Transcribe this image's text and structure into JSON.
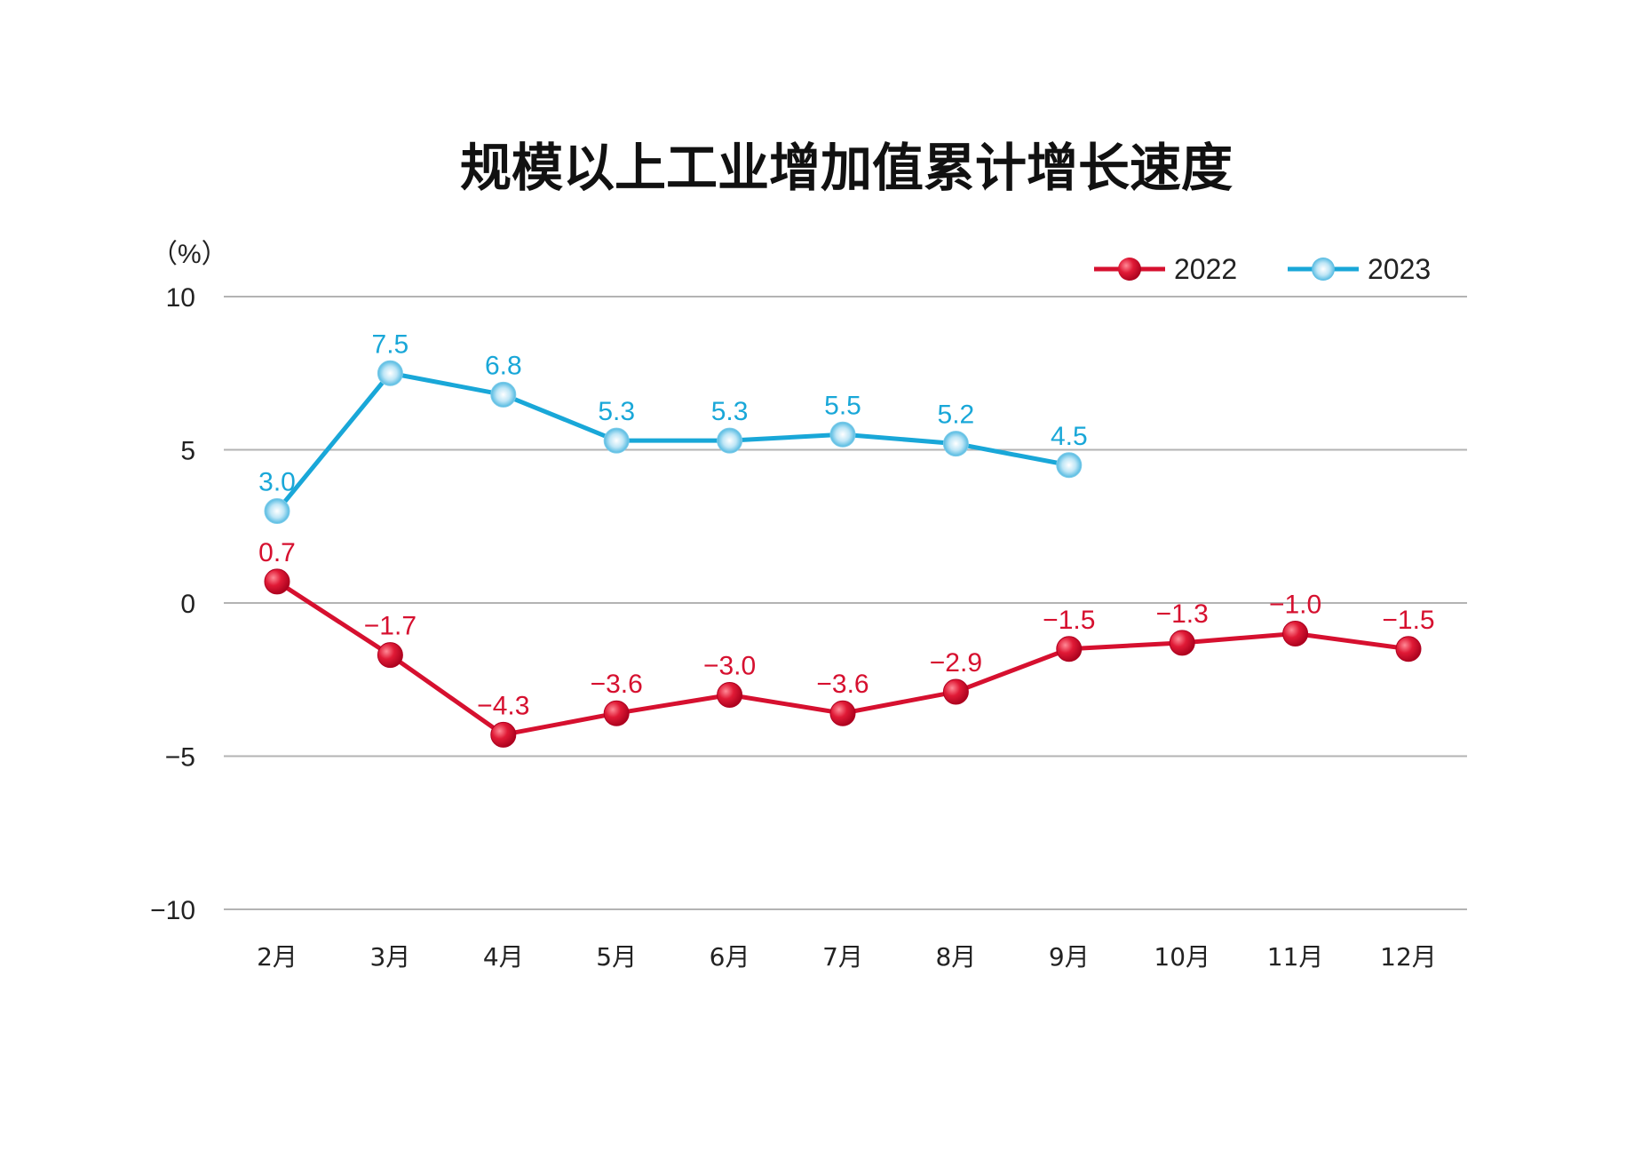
{
  "colors": {
    "series_2022": "#d6102f",
    "series_2023": "#19a7d8",
    "grid": "#b3b3b3",
    "text": "#222222"
  },
  "chart_data": {
    "type": "line",
    "title": "规模以上工业增加值累计增长速度",
    "ylabel": "（%）",
    "xlabel": "",
    "ylim": [
      -10,
      10
    ],
    "yticks": [
      10,
      5,
      0,
      -5,
      -10
    ],
    "ytick_labels": [
      "10",
      "5",
      "0",
      "−5",
      "−10"
    ],
    "grid": true,
    "legend_position": "top-right",
    "categories": [
      "2月",
      "3月",
      "4月",
      "5月",
      "6月",
      "7月",
      "8月",
      "9月",
      "10月",
      "11月",
      "12月"
    ],
    "series": [
      {
        "name": "2022",
        "color": "#d6102f",
        "values": [
          0.7,
          -1.7,
          -4.3,
          -3.6,
          -3.0,
          -3.6,
          -2.9,
          -1.5,
          -1.3,
          -1.0,
          -1.5
        ],
        "labels": [
          "0.7",
          "−1.7",
          "−4.3",
          "−3.6",
          "−3.0",
          "−3.6",
          "−2.9",
          "−1.5",
          "−1.3",
          "−1.0",
          "−1.5"
        ]
      },
      {
        "name": "2023",
        "color": "#19a7d8",
        "values": [
          3.0,
          7.5,
          6.8,
          5.3,
          5.3,
          5.5,
          5.2,
          4.5,
          null,
          null,
          null
        ],
        "labels": [
          "3.0",
          "7.5",
          "6.8",
          "5.3",
          "5.3",
          "5.5",
          "5.2",
          "4.5",
          null,
          null,
          null
        ]
      }
    ]
  }
}
